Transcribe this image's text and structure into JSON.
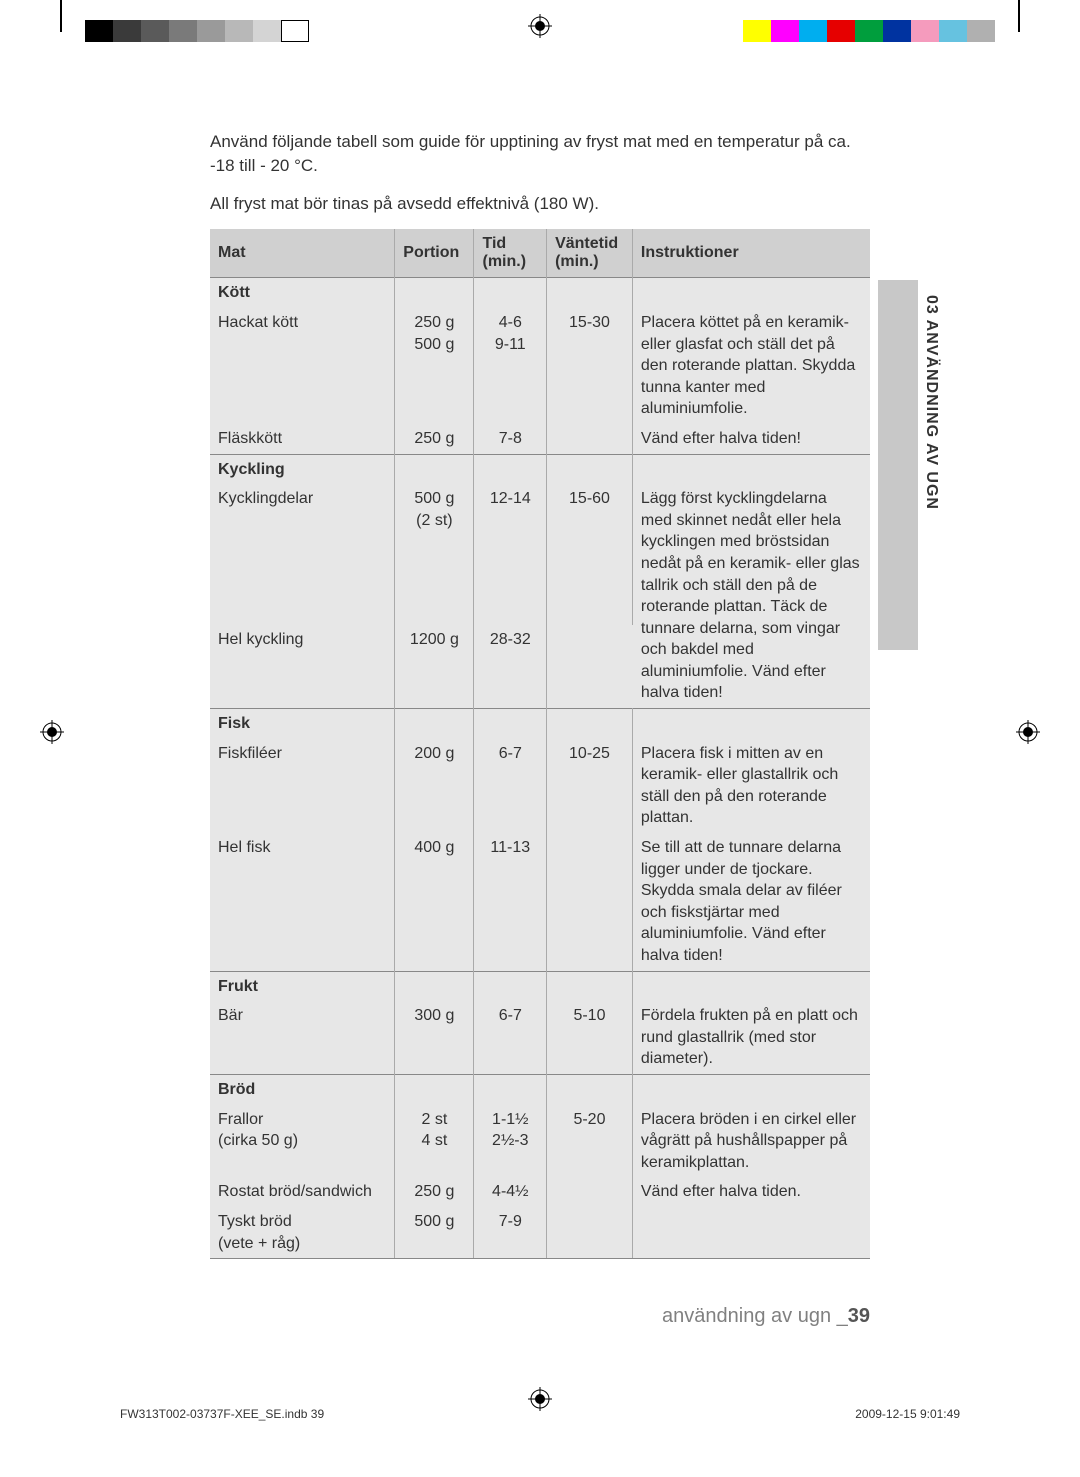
{
  "calibration_bars": {
    "left": [
      "#000000",
      "#3a3a3a",
      "#5a5a5a",
      "#7a7a7a",
      "#9a9a9a",
      "#b8b8b8",
      "#d4d4d4",
      "#ffffff"
    ],
    "right": [
      "#ffff00",
      "#ff00ff",
      "#00aeef",
      "#e60000",
      "#009e3d",
      "#0033a0",
      "#f59bbd",
      "#66c2e0",
      "#b0b0b0"
    ]
  },
  "intro": {
    "p1": "Använd följande tabell som guide för upptining av fryst mat med en temperatur på ca. -18 till - 20 °C.",
    "p2": "All fryst mat bör tinas på avsedd effektnivå (180 W)."
  },
  "headers": {
    "mat": "Mat",
    "portion": "Portion",
    "tid": "Tid (min.)",
    "vantetid": "Väntetid (min.)",
    "instr": "Instruktioner"
  },
  "sections": [
    {
      "title": "Kött",
      "rows": [
        {
          "mat": "Hackat kött",
          "portion": "250 g\n500 g",
          "tid": "4-6\n9-11",
          "vant": "15-30",
          "instr": "Placera köttet på en keramik- eller glasfat och ställ det på den roterande plattan. Skydda tunna kanter med aluminiumfolie."
        },
        {
          "mat": "Fläskkött",
          "portion": "250 g",
          "tid": "7-8",
          "vant": "",
          "instr": "Vänd efter halva tiden!"
        }
      ]
    },
    {
      "title": "Kyckling",
      "rows": [
        {
          "mat": "Kycklingdelar",
          "portion": "500 g\n(2 st)",
          "tid": "12-14",
          "vant": "15-60",
          "instr": "Lägg först kycklingdelarna med skinnet nedåt eller hela kycklingen med bröstsidan nedåt på en keramik- eller glas tallrik och ställ den på de roterande plattan. Täck de tunnare delarna, som vingar och bakdel med aluminiumfolie. Vänd efter halva tiden!",
          "instr_rowspan": 2
        },
        {
          "mat": "Hel kyckling",
          "portion": "1200 g",
          "tid": "28-32",
          "vant": ""
        }
      ]
    },
    {
      "title": "Fisk",
      "rows": [
        {
          "mat": "Fiskfiléer",
          "portion": "200 g",
          "tid": "6-7",
          "vant": "10-25",
          "instr": "Placera fisk i mitten av en keramik- eller glastallrik och ställ den på den roterande plattan."
        },
        {
          "mat": "Hel fisk",
          "portion": "400 g",
          "tid": "11-13",
          "vant": "",
          "instr": "Se till att de tunnare delarna ligger under de tjockare. Skydda smala delar av filéer och fiskstjärtar med aluminiumfolie. Vänd efter halva tiden!"
        }
      ]
    },
    {
      "title": "Frukt",
      "rows": [
        {
          "mat": "Bär",
          "portion": "300 g",
          "tid": "6-7",
          "vant": "5-10",
          "instr": "Fördela frukten på en platt och rund glastallrik (med stor diameter)."
        }
      ]
    },
    {
      "title": "Bröd",
      "rows": [
        {
          "mat": "Frallor\n(cirka 50 g)",
          "portion": "2 st\n4 st",
          "tid": "1-1½\n2½-3",
          "vant": "5-20",
          "instr": "Placera bröden i en cirkel eller vågrätt på hushållspapper på keramikplattan."
        },
        {
          "mat": "Rostat bröd/sandwich",
          "portion": "250 g",
          "tid": "4-4½",
          "vant": "",
          "instr": "Vänd efter halva tiden."
        },
        {
          "mat": "Tyskt bröd\n(vete + råg)",
          "portion": "500 g",
          "tid": "7-9",
          "vant": "",
          "instr": ""
        }
      ]
    }
  ],
  "side_tab": "03 ANVÄNDNING AV UGN",
  "footer_label": "användning av ugn _",
  "footer_page": "39",
  "indb_left": "FW313T002-03737F-XEE_SE.indb   39",
  "indb_right": "2009-12-15      9:01:49",
  "col_widths": [
    "28%",
    "12%",
    "11%",
    "13%",
    "36%"
  ]
}
